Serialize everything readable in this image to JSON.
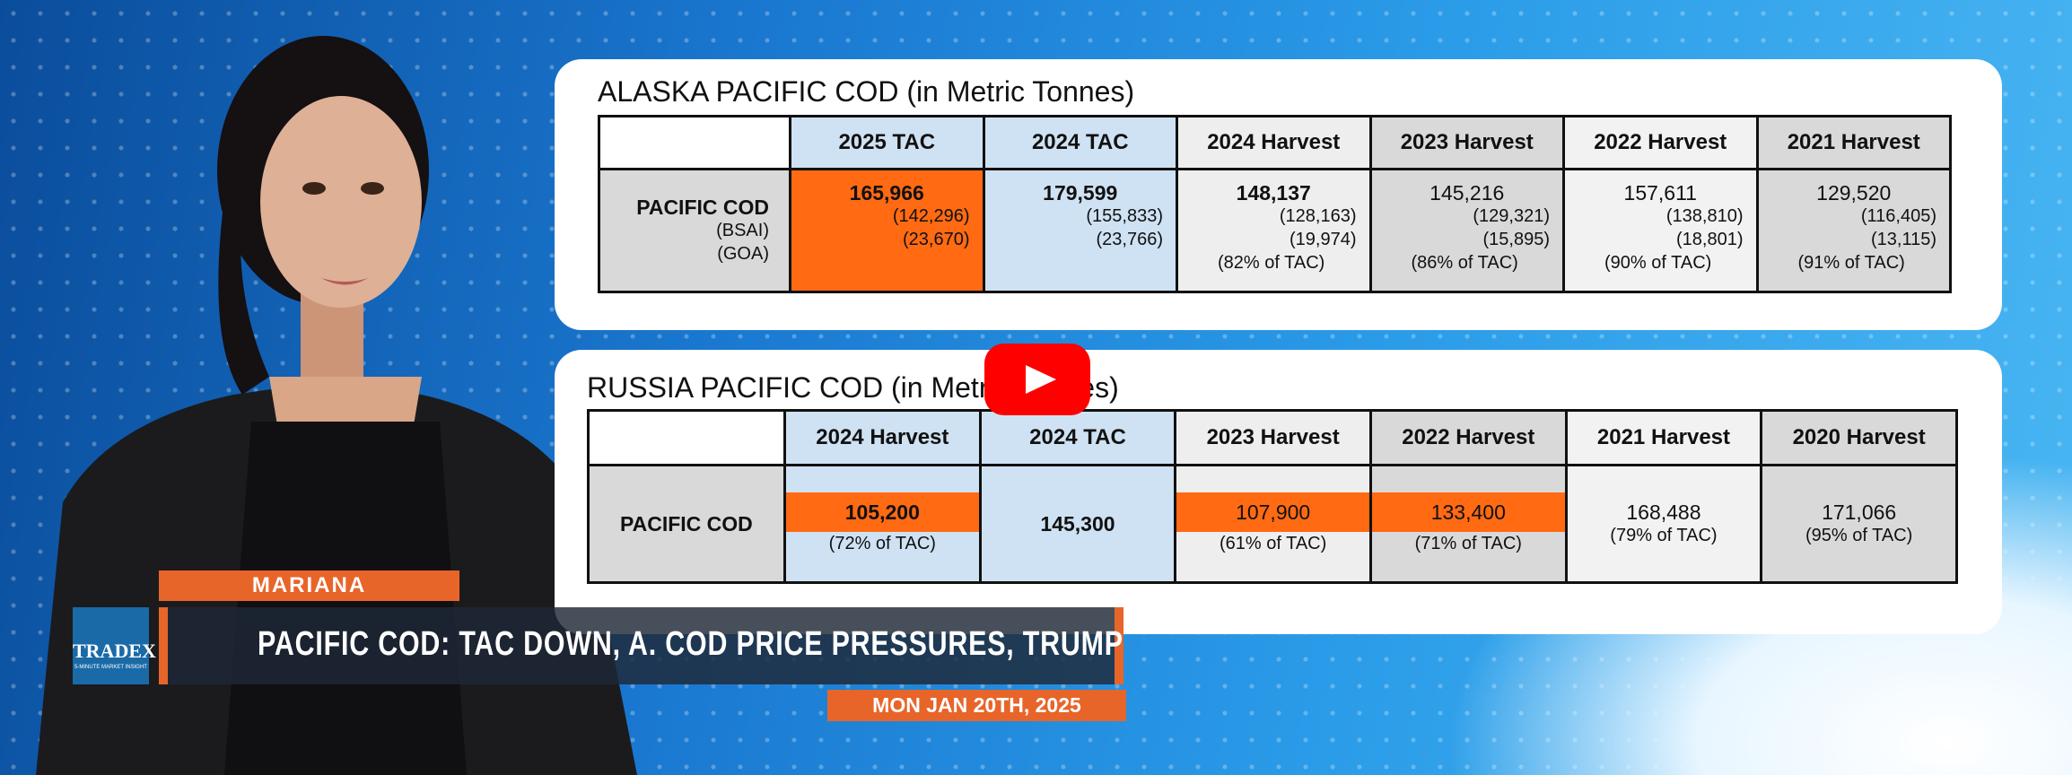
{
  "alaska": {
    "title": "ALASKA PACIFIC COD (in Metric Tonnes)",
    "columns": [
      "2025 TAC",
      "2024 TAC",
      "2024 Harvest",
      "2023 Harvest",
      "2022 Harvest",
      "2021 Harvest"
    ],
    "row_label": [
      "PACIFIC COD",
      "(BSAI)",
      "(GOA)"
    ],
    "cells": [
      [
        "165,966",
        "(142,296)",
        "(23,670)"
      ],
      [
        "179,599",
        "(155,833)",
        "(23,766)"
      ],
      [
        "148,137",
        "(128,163)",
        "(19,974)",
        "(82% of TAC)"
      ],
      [
        "145,216",
        "(129,321)",
        "(15,895)",
        "(86% of TAC)"
      ],
      [
        "157,611",
        "(138,810)",
        "(18,801)",
        "(90% of TAC)"
      ],
      [
        "129,520",
        "(116,405)",
        "(13,115)",
        "(91% of TAC)"
      ]
    ]
  },
  "russia": {
    "title": "RUSSIA PACIFIC COD (in Metric Tonnes)",
    "columns": [
      "2024 Harvest",
      "2024 TAC",
      "2023 Harvest",
      "2022 Harvest",
      "2021 Harvest",
      "2020 Harvest"
    ],
    "row_label": "PACIFIC COD",
    "cells": [
      [
        "105,200",
        "(72% of TAC)"
      ],
      [
        "145,300"
      ],
      [
        "107,900",
        "(61% of TAC)"
      ],
      [
        "133,400",
        "(71% of TAC)"
      ],
      [
        "168,488",
        "(79% of TAC)"
      ],
      [
        "171,066",
        "(95% of TAC)"
      ]
    ]
  },
  "lower_third": {
    "name": "MARIANA",
    "headline": "PACIFIC COD: TAC DOWN, A. COD PRICE PRESSURES, TRUMP",
    "date": "MON JAN 20TH, 2025",
    "logo": "TRADEX",
    "logo_tagline": "5-MINUTE MARKET INSIGHT"
  }
}
